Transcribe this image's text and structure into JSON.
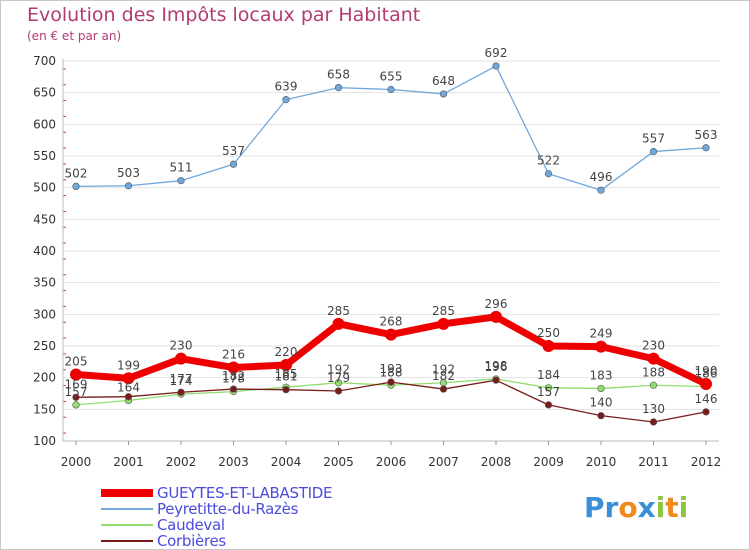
{
  "header": {
    "title": "Evolution des Impôts locaux par Habitant",
    "subtitle": "(en € et par an)"
  },
  "logo": {
    "text": "Proxiti",
    "letters": [
      {
        "ch": "P",
        "color": "#3a8fd8"
      },
      {
        "ch": "r",
        "color": "#3a8fd8"
      },
      {
        "ch": "o",
        "color": "#f08a1c"
      },
      {
        "ch": "x",
        "color": "#3a8fd8"
      },
      {
        "ch": "i",
        "color": "#8dc63f"
      },
      {
        "ch": "t",
        "color": "#f08a1c"
      },
      {
        "ch": "i",
        "color": "#8dc63f"
      }
    ]
  },
  "chart_data": {
    "type": "line",
    "title": "Evolution des Impôts locaux par Habitant",
    "subtitle": "(en € et par an)",
    "xlabel": "",
    "ylabel": "",
    "x": [
      "2000",
      "2001",
      "2002",
      "2003",
      "2004",
      "2005",
      "2006",
      "2007",
      "2008",
      "2009",
      "2010",
      "2011",
      "2012"
    ],
    "ylim": [
      100,
      700
    ],
    "yticks": [
      100,
      150,
      200,
      250,
      300,
      350,
      400,
      450,
      500,
      550,
      600,
      650,
      700
    ],
    "grid": "horizontal",
    "legend_position": "bottom-left",
    "series": [
      {
        "name": "GUEYTES-ET-LABASTIDE",
        "color": "#ee0000",
        "width": 7,
        "values": [
          205,
          199,
          230,
          216,
          220,
          285,
          268,
          285,
          296,
          250,
          249,
          230,
          190
        ],
        "labels": [
          "205",
          "199",
          "230",
          "216",
          "220",
          "285",
          "268",
          "285",
          "296",
          "250",
          "249",
          "230",
          "190"
        ]
      },
      {
        "name": "Peyretitte-du-Razès",
        "color": "#6fa8dc",
        "width": 1.3,
        "values": [
          502,
          503,
          511,
          537,
          639,
          658,
          655,
          648,
          692,
          522,
          496,
          557,
          563
        ],
        "labels": [
          "502",
          "503",
          "511",
          "537",
          "639",
          "658",
          "655",
          "648",
          "692",
          "522",
          "496",
          "557",
          "563"
        ]
      },
      {
        "name": "Caudeval",
        "color": "#90dd70",
        "width": 1.3,
        "values": [
          157,
          164,
          174,
          178,
          185,
          192,
          188,
          192,
          198,
          184,
          183,
          188,
          186
        ],
        "labels": [
          "157",
          "164",
          "174",
          "178",
          "185",
          "192",
          "188",
          "192",
          "198",
          "184",
          "183",
          "188",
          "186"
        ]
      },
      {
        "name": "Corbières",
        "color": "#7a1c1c",
        "width": 1.3,
        "values": [
          169,
          170,
          177,
          182,
          181,
          179,
          193,
          182,
          196,
          157,
          140,
          130,
          146
        ],
        "labels": [
          "169",
          "",
          "177",
          "182",
          "181",
          "179",
          "193",
          "182",
          "196",
          "157",
          "140",
          "130",
          "146"
        ]
      }
    ]
  }
}
